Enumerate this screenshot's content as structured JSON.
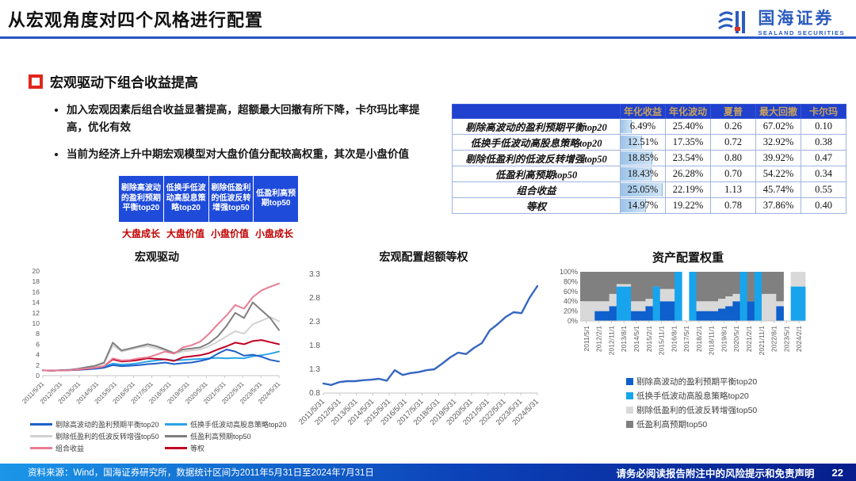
{
  "header": {
    "title": "从宏观角度对四个风格进行配置",
    "logo_cn": "国海证券",
    "logo_en": "SEALAND SECURITIES"
  },
  "section": {
    "heading": "宏观驱动下组合收益提高",
    "bullets": [
      "加入宏观因素后组合收益显著提高，超额最大回撤有所下降，卡尔玛比率提高，优化有效",
      "当前为经济上升中期宏观模型对大盘价值分配较高权重，其次是小盘价值"
    ]
  },
  "diagram": {
    "boxes": [
      "剔除高波动的盈利预期平衡top20",
      "低换手低波动高股息策略top20",
      "剔除低盈利的低波反转增强top50",
      "低盈利高预期top50"
    ],
    "styles": [
      "大盘成长",
      "大盘价值",
      "小盘价值",
      "小盘成长"
    ],
    "box_color": "#1f4bdb",
    "label_color": "#c00000"
  },
  "table": {
    "columns": [
      "年化收益",
      "年化波动",
      "夏普",
      "最大回撤",
      "卡尔玛"
    ],
    "bar_max": 25.05,
    "rows": [
      {
        "label": "剔除高波动的盈利预期平衡top20",
        "bar": 6.49,
        "values": [
          "6.49%",
          "25.40%",
          "0.26",
          "67.02%",
          "0.10"
        ]
      },
      {
        "label": "低换手低波动高股息策略top20",
        "bar": 12.51,
        "values": [
          "12.51%",
          "17.35%",
          "0.72",
          "32.92%",
          "0.38"
        ]
      },
      {
        "label": "剔除低盈利的低波反转增强top50",
        "bar": 18.85,
        "values": [
          "18.85%",
          "23.54%",
          "0.80",
          "39.92%",
          "0.47"
        ]
      },
      {
        "label": "低盈利高预期top50",
        "bar": 18.43,
        "values": [
          "18.43%",
          "26.28%",
          "0.70",
          "54.22%",
          "0.34"
        ]
      },
      {
        "label": "组合收益",
        "bar": 25.05,
        "values": [
          "25.05%",
          "22.19%",
          "1.13",
          "45.74%",
          "0.55"
        ]
      },
      {
        "label": "等权",
        "bar": 14.97,
        "values": [
          "14.97%",
          "19.22%",
          "0.78",
          "37.86%",
          "0.40"
        ]
      }
    ]
  },
  "chart_data": [
    {
      "type": "line",
      "title": "宏观驱动",
      "ylim": [
        0,
        20
      ],
      "yticks": [
        0,
        2,
        4,
        6,
        8,
        10,
        12,
        14,
        16,
        18,
        20
      ],
      "x_labels": [
        "2011/5/31",
        "2012/5/31",
        "2013/5/31",
        "2014/5/31",
        "2015/5/31",
        "2016/5/31",
        "2017/5/31",
        "2018/5/31",
        "2019/5/31",
        "2020/5/31",
        "2021/5/31",
        "2022/5/31",
        "2023/5/31",
        "2024/5/31"
      ],
      "grid": false,
      "legend_position": "bottom",
      "series": [
        {
          "name": "剔除低盈利的低波反转增强top50",
          "color": "#d2d2d2",
          "values": [
            1.0,
            0.95,
            1.0,
            1.1,
            1.3,
            1.5,
            1.8,
            2.3,
            5.8,
            4.6,
            5.0,
            5.4,
            5.6,
            5.2,
            4.8,
            4.2,
            4.6,
            4.8,
            5.0,
            5.6,
            6.5,
            7.5,
            8.5,
            8.0,
            9.8,
            10.5,
            11.2,
            10.4
          ]
        },
        {
          "name": "低盈利高预期top50",
          "color": "#7f7f7f",
          "values": [
            1.0,
            0.95,
            1.0,
            1.1,
            1.3,
            1.6,
            1.9,
            2.5,
            6.3,
            4.8,
            5.2,
            5.6,
            6.0,
            5.6,
            5.0,
            4.3,
            5.0,
            5.2,
            5.4,
            6.2,
            7.5,
            9.5,
            12.0,
            11.0,
            14.0,
            12.5,
            11.0,
            8.7
          ]
        },
        {
          "name": "低换手低波动高股息策略top20",
          "color": "#2ba4e8",
          "values": [
            1.0,
            0.97,
            1.05,
            1.1,
            1.2,
            1.35,
            1.5,
            1.7,
            2.3,
            2.1,
            2.2,
            2.4,
            2.7,
            2.9,
            3.1,
            2.9,
            3.0,
            3.1,
            3.2,
            3.3,
            3.4,
            3.3,
            3.4,
            3.3,
            3.7,
            3.9,
            4.2,
            4.6
          ]
        },
        {
          "name": "剔除高波动的盈利预期平衡top20",
          "color": "#1e5fc8",
          "values": [
            1.0,
            0.95,
            1.0,
            1.02,
            1.1,
            1.2,
            1.3,
            1.5,
            2.0,
            1.8,
            1.9,
            2.0,
            2.2,
            2.3,
            2.5,
            2.2,
            2.4,
            2.5,
            2.8,
            3.2,
            4.2,
            5.0,
            4.6,
            3.8,
            4.0,
            3.6,
            3.0,
            2.7
          ]
        },
        {
          "name": "等权",
          "color": "#c00023",
          "values": [
            1.0,
            0.95,
            1.0,
            1.05,
            1.15,
            1.3,
            1.5,
            1.8,
            3.1,
            2.7,
            2.8,
            3.0,
            3.3,
            3.2,
            3.1,
            2.8,
            3.5,
            3.7,
            3.9,
            4.3,
            5.0,
            5.6,
            6.3,
            6.0,
            6.6,
            6.8,
            6.4,
            6.0
          ]
        },
        {
          "name": "组合收益",
          "color": "#e87d93",
          "values": [
            1.0,
            0.95,
            1.0,
            1.05,
            1.2,
            1.35,
            1.5,
            1.8,
            3.3,
            2.9,
            3.0,
            3.3,
            3.5,
            4.0,
            4.6,
            4.2,
            5.4,
            5.8,
            6.5,
            8.0,
            9.8,
            11.5,
            13.5,
            12.8,
            15.0,
            16.3,
            17.0,
            17.6
          ]
        }
      ],
      "legend": [
        {
          "label": "剔除高波动的盈利预期平衡top20",
          "color": "#1e5fc8"
        },
        {
          "label": "低换手低波动高股息策略top20",
          "color": "#2ba4e8"
        },
        {
          "label": "剔除低盈利的低波反转增强top50",
          "color": "#d2d2d2"
        },
        {
          "label": "低盈利高预期top50",
          "color": "#7f7f7f"
        },
        {
          "label": "组合收益",
          "color": "#e87d93"
        },
        {
          "label": "等权",
          "color": "#c00023"
        }
      ]
    },
    {
      "type": "line",
      "title": "宏观配置超额等权",
      "ylim": [
        0.8,
        3.3
      ],
      "yticks": [
        0.8,
        1.3,
        1.8,
        2.3,
        2.8,
        3.3
      ],
      "x_labels": [
        "2011/5/31",
        "2012/5/31",
        "2013/5/31",
        "2014/5/31",
        "2015/5/31",
        "2016/5/31",
        "2017/5/31",
        "2018/5/31",
        "2019/5/31",
        "2020/5/31",
        "2021/5/31",
        "2022/5/31",
        "2023/5/31",
        "2024/5/31"
      ],
      "grid": false,
      "legend_position": "none",
      "series": [
        {
          "name": "宏观配置超额等权",
          "color": "#3566c1",
          "values": [
            1.0,
            0.97,
            1.03,
            1.05,
            1.05,
            1.07,
            1.08,
            1.1,
            1.06,
            1.28,
            1.18,
            1.22,
            1.24,
            1.28,
            1.3,
            1.42,
            1.55,
            1.65,
            1.62,
            1.75,
            1.85,
            2.12,
            2.25,
            2.4,
            2.5,
            2.48,
            2.8,
            3.05
          ]
        }
      ],
      "legend": []
    },
    {
      "type": "area",
      "title": "资产配置权重",
      "ylim": [
        0,
        100
      ],
      "yticks": [
        "0%",
        "20%",
        "40%",
        "60%",
        "80%",
        "100%"
      ],
      "x_labels": [
        "2011/5/1",
        "2012/2/1",
        "2012/11/1",
        "2013/8/1",
        "2014/5/1",
        "2015/2/1",
        "2015/11/1",
        "2016/8/1",
        "2017/5/1",
        "2018/2/1",
        "2018/11/1",
        "2019/8/1",
        "2020/5/1",
        "2021/2/1",
        "2021/11/1",
        "2022/8/1",
        "2023/5/1",
        "2024/2/1"
      ],
      "series_names": [
        "剔除高波动的盈利预期平衡top20",
        "低换手低波动高股息策略top20",
        "剔除低盈利的低波反转增强top50",
        "低盈利高预期top50"
      ],
      "colors": [
        "#0f5fcc",
        "#18a4ec",
        "#d9d9d9",
        "#808080"
      ],
      "segments": [
        [
          0,
          0,
          40,
          60
        ],
        [
          0,
          0,
          40,
          60
        ],
        [
          20,
          0,
          20,
          60
        ],
        [
          20,
          0,
          20,
          60
        ],
        [
          30,
          0,
          25,
          45
        ],
        [
          0,
          70,
          5,
          25
        ],
        [
          0,
          70,
          5,
          25
        ],
        [
          20,
          0,
          20,
          60
        ],
        [
          20,
          0,
          20,
          60
        ],
        [
          30,
          0,
          15,
          55
        ],
        [
          0,
          70,
          0,
          30
        ],
        [
          40,
          0,
          25,
          35
        ],
        [
          40,
          0,
          25,
          35
        ],
        [
          0,
          100,
          0,
          0
        ],
        [
          0,
          0,
          0,
          0
        ],
        [
          0,
          100,
          0,
          0
        ],
        [
          20,
          0,
          20,
          60
        ],
        [
          20,
          0,
          20,
          60
        ],
        [
          20,
          0,
          20,
          60
        ],
        [
          25,
          0,
          20,
          55
        ],
        [
          30,
          0,
          20,
          50
        ],
        [
          40,
          0,
          15,
          45
        ],
        [
          0,
          100,
          0,
          0
        ],
        [
          40,
          0,
          0,
          60
        ],
        [
          0,
          100,
          0,
          0
        ],
        [
          0,
          0,
          55,
          45
        ],
        [
          0,
          0,
          55,
          45
        ],
        [
          30,
          0,
          10,
          60
        ],
        [
          0,
          0,
          0,
          0
        ],
        [
          0,
          70,
          30,
          0
        ],
        [
          0,
          70,
          30,
          0
        ]
      ],
      "legend": [
        {
          "label": "剔除高波动的盈利预期平衡top20",
          "color": "#0f5fcc"
        },
        {
          "label": "低换手低波动高股息策略top20",
          "color": "#18a4ec"
        },
        {
          "label": "剔除低盈利的低波反转增强top50",
          "color": "#d9d9d9"
        },
        {
          "label": "低盈利高预期top50",
          "color": "#808080"
        }
      ],
      "legend_position": "bottom"
    }
  ],
  "footer": {
    "source": "资料来源：Wind，国海证券研究所，数据统计区间为2011年5月31日至2024年7月31日",
    "disclaimer": "请务必阅读报告附注中的风险提示和免责声明",
    "page": "22"
  }
}
